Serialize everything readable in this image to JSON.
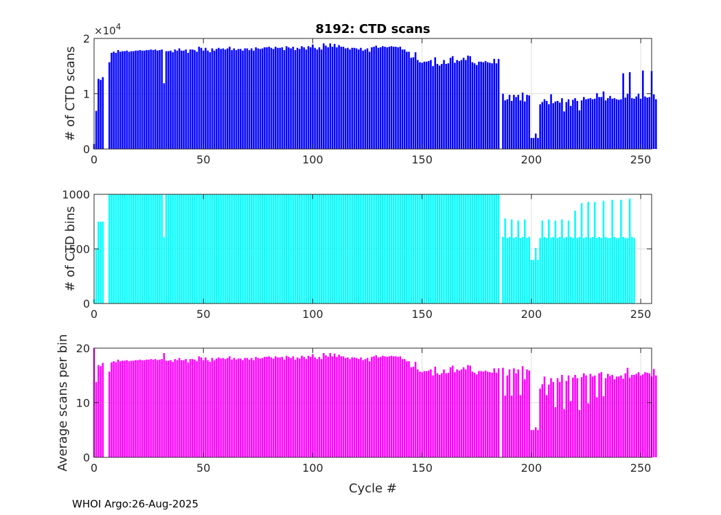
{
  "figure_title": "8192: CTD scans",
  "footer": "WHOI Argo:26-Aug-2025",
  "chart_data": [
    {
      "type": "bar",
      "title": "8192: CTD scans",
      "ylabel": "# of CTD scans",
      "xlabel": "",
      "color": "#0000ff",
      "xlim": [
        0,
        255
      ],
      "ylim": [
        0,
        20000
      ],
      "yticks": [
        0,
        10000,
        20000
      ],
      "ytick_labels": [
        "0",
        "1",
        "2"
      ],
      "y_exponent_label": "×10",
      "y_exponent_power": "4",
      "xticks": [
        0,
        50,
        100,
        150,
        200,
        250
      ],
      "xtick_labels": [
        "0",
        "50",
        "100",
        "150",
        "200",
        "250"
      ],
      "values": [
        900,
        6900,
        12700,
        12500,
        13000,
        0,
        0,
        15700,
        17400,
        17600,
        17400,
        17900,
        17600,
        17700,
        17700,
        17800,
        17600,
        17700,
        17700,
        17800,
        17800,
        17900,
        17800,
        17800,
        17900,
        17900,
        18000,
        17900,
        18000,
        17800,
        17900,
        18000,
        11900,
        17700,
        17700,
        17800,
        17500,
        18000,
        17800,
        18200,
        17800,
        17800,
        18000,
        17400,
        18000,
        18000,
        17900,
        17600,
        18500,
        18300,
        17800,
        18300,
        17800,
        17500,
        18200,
        17800,
        18100,
        18300,
        18100,
        18200,
        18000,
        18200,
        18500,
        17900,
        18200,
        17900,
        18100,
        18100,
        17800,
        18200,
        18200,
        17900,
        18200,
        17800,
        18400,
        18200,
        18100,
        18200,
        18400,
        18400,
        18500,
        18300,
        18100,
        18500,
        18300,
        18300,
        18400,
        17900,
        18600,
        18400,
        18200,
        18500,
        17900,
        18300,
        18100,
        18600,
        18400,
        18000,
        18600,
        18400,
        18900,
        18300,
        18000,
        18400,
        18000,
        19100,
        18700,
        18400,
        19100,
        18500,
        19000,
        18400,
        18800,
        18500,
        18500,
        18200,
        18300,
        18000,
        18300,
        18300,
        18200,
        18000,
        18300,
        17800,
        18000,
        18200,
        17600,
        18400,
        18500,
        18700,
        18300,
        18400,
        18600,
        18500,
        18400,
        18500,
        18600,
        18500,
        18500,
        18400,
        18500,
        18000,
        18000,
        17600,
        17600,
        16500,
        16600,
        17500,
        16100,
        15700,
        15600,
        15800,
        15800,
        15900,
        16100,
        15000,
        16600,
        15400,
        15100,
        15400,
        16100,
        15400,
        15500,
        16500,
        16800,
        15600,
        16100,
        15900,
        16100,
        16500,
        16100,
        16900,
        16800,
        15700,
        15500,
        15200,
        15800,
        15800,
        15700,
        15900,
        15700,
        15600,
        15500,
        16300,
        15500,
        16300,
        0,
        10000,
        8800,
        9000,
        9800,
        8700,
        9800,
        9400,
        9800,
        8800,
        10200,
        8600,
        9800,
        9700,
        2000,
        2000,
        2800,
        2000,
        8100,
        8500,
        9000,
        8700,
        8100,
        9900,
        8300,
        8600,
        8700,
        8400,
        9200,
        6800,
        8500,
        9000,
        7800,
        8900,
        9200,
        8700,
        7000,
        8800,
        9400,
        9000,
        9100,
        9200,
        9000,
        9100,
        10100,
        9400,
        9400,
        10400,
        8800,
        9200,
        9600,
        9100,
        9200,
        9000,
        8900,
        9000,
        13700,
        9300,
        10000,
        13900,
        9200,
        9100,
        9500,
        10000,
        9100,
        14200,
        9500,
        9300,
        9400,
        14100,
        9900,
        9000
      ]
    },
    {
      "type": "bar",
      "title": "",
      "ylabel": "# of CTD bins",
      "xlabel": "",
      "color": "#00ffff",
      "xlim": [
        0,
        255
      ],
      "ylim": [
        0,
        1000
      ],
      "yticks": [
        0,
        500,
        1000
      ],
      "ytick_labels": [
        "0",
        "500",
        "1000"
      ],
      "xticks": [
        0,
        50,
        100,
        150,
        200,
        250
      ],
      "xtick_labels": [
        "0",
        "50",
        "100",
        "150",
        "200",
        "250"
      ],
      "values": [
        40,
        500,
        750,
        750,
        750,
        0,
        0,
        1000,
        1000,
        1000,
        1000,
        1000,
        1000,
        1000,
        1000,
        1000,
        1000,
        1000,
        1000,
        1000,
        1000,
        1000,
        1000,
        1000,
        1000,
        1000,
        1000,
        1000,
        1000,
        1000,
        1000,
        1000,
        610,
        1000,
        1000,
        1000,
        1000,
        1000,
        1000,
        1000,
        1000,
        1000,
        1000,
        1000,
        1000,
        1000,
        1000,
        1000,
        1000,
        1000,
        1000,
        1000,
        1000,
        1000,
        1000,
        1000,
        1000,
        1000,
        1000,
        1000,
        1000,
        1000,
        1000,
        1000,
        1000,
        1000,
        1000,
        1000,
        1000,
        1000,
        1000,
        1000,
        1000,
        1000,
        1000,
        1000,
        1000,
        1000,
        1000,
        1000,
        1000,
        1000,
        1000,
        1000,
        1000,
        1000,
        1000,
        1000,
        1000,
        1000,
        1000,
        1000,
        1000,
        1000,
        1000,
        1000,
        1000,
        1000,
        1000,
        1000,
        1000,
        1000,
        1000,
        1000,
        1000,
        1000,
        1000,
        1000,
        1000,
        1000,
        1000,
        1000,
        1000,
        1000,
        1000,
        1000,
        1000,
        1000,
        1000,
        1000,
        1000,
        1000,
        1000,
        1000,
        1000,
        1000,
        1000,
        1000,
        1000,
        1000,
        1000,
        1000,
        1000,
        1000,
        1000,
        1000,
        1000,
        1000,
        1000,
        1000,
        1000,
        1000,
        1000,
        1000,
        1000,
        1000,
        1000,
        1000,
        1000,
        1000,
        1000,
        1000,
        1000,
        1000,
        1000,
        1000,
        1000,
        1000,
        1000,
        1000,
        1000,
        1000,
        1000,
        1000,
        1000,
        1000,
        1000,
        1000,
        1000,
        1000,
        1000,
        1000,
        1000,
        1000,
        1000,
        1000,
        1000,
        1000,
        1000,
        1000,
        1000,
        1000,
        1000,
        1000,
        1000,
        1000,
        0,
        610,
        780,
        600,
        610,
        770,
        600,
        610,
        760,
        600,
        610,
        770,
        600,
        610,
        400,
        400,
        510,
        400,
        600,
        760,
        610,
        600,
        770,
        600,
        610,
        760,
        600,
        610,
        770,
        600,
        610,
        760,
        610,
        600,
        850,
        600,
        610,
        920,
        600,
        610,
        930,
        600,
        610,
        930,
        600,
        610,
        600,
        940,
        610,
        600,
        600,
        950,
        610,
        600,
        600,
        950,
        610,
        600,
        600,
        960,
        610,
        600
      ]
    },
    {
      "type": "bar",
      "title": "",
      "ylabel": "Average scans per bin",
      "xlabel": "Cycle #",
      "color": "#ff00ff",
      "xlim": [
        0,
        255
      ],
      "ylim": [
        0,
        20
      ],
      "yticks": [
        0,
        10,
        20
      ],
      "ytick_labels": [
        "0",
        "10",
        "20"
      ],
      "xticks": [
        0,
        50,
        100,
        150,
        200,
        250
      ],
      "xtick_labels": [
        "0",
        "50",
        "100",
        "150",
        "200",
        "250"
      ],
      "values": [
        20.5,
        13.8,
        16.9,
        16.7,
        17.3,
        0,
        0,
        15.7,
        17.4,
        17.6,
        17.4,
        17.9,
        17.6,
        17.7,
        17.7,
        17.8,
        17.6,
        17.7,
        17.7,
        17.8,
        17.8,
        17.9,
        17.8,
        17.8,
        17.9,
        17.9,
        18.0,
        17.9,
        18.0,
        17.8,
        17.9,
        18.0,
        19.1,
        17.7,
        17.7,
        17.8,
        17.5,
        18.0,
        17.8,
        18.2,
        17.8,
        17.8,
        18.0,
        17.4,
        18.0,
        18.0,
        17.9,
        17.6,
        18.5,
        18.3,
        17.8,
        18.3,
        17.8,
        17.5,
        18.2,
        17.8,
        18.1,
        18.3,
        18.1,
        18.2,
        18.0,
        18.2,
        18.5,
        17.9,
        18.2,
        17.9,
        18.1,
        18.1,
        17.8,
        18.2,
        18.2,
        17.9,
        18.2,
        17.8,
        18.4,
        18.2,
        18.1,
        18.2,
        18.4,
        18.4,
        18.5,
        18.3,
        18.1,
        18.5,
        18.3,
        18.3,
        18.4,
        17.9,
        18.6,
        18.4,
        18.2,
        18.5,
        17.9,
        18.3,
        18.1,
        18.6,
        18.4,
        18.0,
        18.6,
        18.4,
        18.9,
        18.3,
        18.0,
        18.4,
        18.0,
        19.1,
        18.7,
        18.4,
        19.1,
        18.5,
        19.0,
        18.4,
        18.8,
        18.5,
        18.5,
        18.2,
        18.3,
        18.0,
        18.3,
        18.3,
        18.2,
        18.0,
        18.3,
        17.8,
        18.0,
        18.2,
        17.6,
        18.4,
        18.5,
        18.7,
        18.3,
        18.4,
        18.6,
        18.5,
        18.4,
        18.5,
        18.6,
        18.5,
        18.5,
        18.4,
        18.5,
        18.0,
        18.0,
        17.6,
        17.6,
        16.5,
        16.6,
        17.5,
        16.1,
        15.7,
        15.6,
        15.8,
        15.8,
        15.9,
        16.1,
        15.0,
        16.6,
        15.4,
        15.1,
        15.4,
        16.1,
        15.4,
        15.5,
        16.5,
        16.8,
        15.6,
        16.1,
        15.9,
        16.1,
        16.5,
        16.1,
        16.9,
        16.8,
        15.7,
        15.5,
        15.2,
        15.8,
        15.8,
        15.7,
        15.9,
        15.7,
        15.6,
        15.5,
        16.3,
        15.5,
        16.3,
        0,
        16.4,
        11.3,
        15.0,
        16.1,
        11.3,
        16.3,
        15.4,
        16.1,
        11.4,
        16.7,
        14.3,
        16.1,
        15.9,
        5.0,
        5.0,
        5.5,
        5.0,
        12.6,
        13.4,
        14.8,
        11.4,
        13.3,
        14.5,
        13.8,
        9.2,
        14.5,
        13.8,
        15.1,
        8.8,
        14.0,
        15.0,
        10.3,
        14.6,
        15.1,
        14.5,
        8.7,
        14.7,
        15.4,
        15.0,
        9.9,
        15.3,
        14.8,
        15.0,
        11.0,
        15.4,
        15.6,
        11.2,
        14.5,
        15.3,
        14.9,
        15.1,
        14.3,
        14.8,
        14.8,
        15.0,
        14.4,
        15.4,
        16.4,
        14.6,
        15.1,
        15.1,
        15.3,
        15.6,
        15.0,
        15.2,
        15.6,
        15.5,
        15.4,
        14.8,
        16.2,
        15.0
      ]
    }
  ]
}
